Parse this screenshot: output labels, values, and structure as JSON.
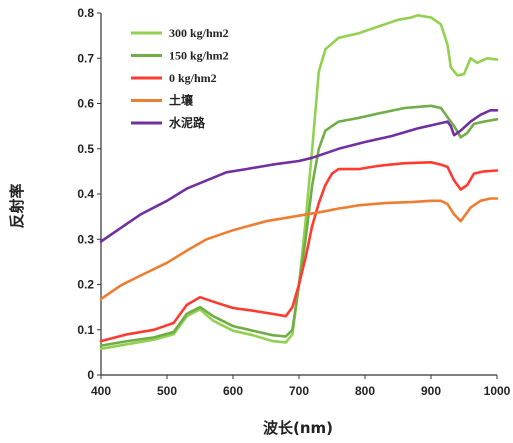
{
  "chart_data": {
    "type": "line",
    "xlabel": "波长(nm)",
    "ylabel": "反射率",
    "xlim": [
      400,
      1000
    ],
    "ylim": [
      0,
      0.8
    ],
    "x_ticks": [
      400,
      500,
      600,
      700,
      800,
      900,
      1000
    ],
    "y_ticks": [
      0,
      0.1,
      0.2,
      0.3,
      0.4,
      0.5,
      0.6,
      0.7,
      0.8
    ],
    "y_tick_labels": [
      "0",
      "0.1",
      "0.2",
      "0.3",
      "0.4",
      "0.5",
      "0.6",
      "0.7",
      "0.8"
    ],
    "legend_position": "top-left",
    "series": [
      {
        "name": "300 kg/hm2",
        "color": "#92d050",
        "points": [
          [
            400,
            0.058
          ],
          [
            440,
            0.068
          ],
          [
            480,
            0.078
          ],
          [
            510,
            0.09
          ],
          [
            530,
            0.13
          ],
          [
            550,
            0.145
          ],
          [
            570,
            0.12
          ],
          [
            600,
            0.098
          ],
          [
            630,
            0.088
          ],
          [
            660,
            0.075
          ],
          [
            680,
            0.072
          ],
          [
            690,
            0.09
          ],
          [
            700,
            0.2
          ],
          [
            710,
            0.34
          ],
          [
            720,
            0.5
          ],
          [
            730,
            0.67
          ],
          [
            740,
            0.72
          ],
          [
            760,
            0.745
          ],
          [
            790,
            0.755
          ],
          [
            810,
            0.765
          ],
          [
            830,
            0.775
          ],
          [
            850,
            0.785
          ],
          [
            870,
            0.79
          ],
          [
            880,
            0.795
          ],
          [
            900,
            0.79
          ],
          [
            915,
            0.775
          ],
          [
            925,
            0.73
          ],
          [
            930,
            0.68
          ],
          [
            940,
            0.662
          ],
          [
            950,
            0.665
          ],
          [
            960,
            0.7
          ],
          [
            970,
            0.69
          ],
          [
            985,
            0.7
          ],
          [
            1000,
            0.697
          ]
        ]
      },
      {
        "name": "150 kg/hm2",
        "color": "#70ad47",
        "points": [
          [
            400,
            0.065
          ],
          [
            440,
            0.075
          ],
          [
            480,
            0.083
          ],
          [
            510,
            0.095
          ],
          [
            530,
            0.135
          ],
          [
            550,
            0.15
          ],
          [
            570,
            0.13
          ],
          [
            600,
            0.108
          ],
          [
            630,
            0.098
          ],
          [
            660,
            0.088
          ],
          [
            680,
            0.085
          ],
          [
            690,
            0.1
          ],
          [
            700,
            0.2
          ],
          [
            710,
            0.3
          ],
          [
            720,
            0.42
          ],
          [
            730,
            0.5
          ],
          [
            740,
            0.54
          ],
          [
            750,
            0.55
          ],
          [
            760,
            0.56
          ],
          [
            790,
            0.568
          ],
          [
            820,
            0.578
          ],
          [
            860,
            0.59
          ],
          [
            900,
            0.595
          ],
          [
            915,
            0.59
          ],
          [
            925,
            0.57
          ],
          [
            935,
            0.55
          ],
          [
            945,
            0.525
          ],
          [
            955,
            0.535
          ],
          [
            965,
            0.555
          ],
          [
            980,
            0.56
          ],
          [
            1000,
            0.565
          ]
        ]
      },
      {
        "name": "0 kg/hm2",
        "color": "#ff3b30",
        "points": [
          [
            400,
            0.075
          ],
          [
            440,
            0.09
          ],
          [
            480,
            0.1
          ],
          [
            510,
            0.115
          ],
          [
            530,
            0.155
          ],
          [
            550,
            0.172
          ],
          [
            570,
            0.162
          ],
          [
            600,
            0.148
          ],
          [
            630,
            0.142
          ],
          [
            660,
            0.135
          ],
          [
            680,
            0.13
          ],
          [
            690,
            0.15
          ],
          [
            700,
            0.2
          ],
          [
            710,
            0.26
          ],
          [
            720,
            0.33
          ],
          [
            730,
            0.38
          ],
          [
            740,
            0.42
          ],
          [
            750,
            0.445
          ],
          [
            760,
            0.455
          ],
          [
            790,
            0.455
          ],
          [
            820,
            0.462
          ],
          [
            860,
            0.468
          ],
          [
            900,
            0.47
          ],
          [
            915,
            0.465
          ],
          [
            925,
            0.46
          ],
          [
            935,
            0.43
          ],
          [
            945,
            0.41
          ],
          [
            955,
            0.42
          ],
          [
            965,
            0.445
          ],
          [
            980,
            0.45
          ],
          [
            1000,
            0.452
          ]
        ]
      },
      {
        "name": "土壤",
        "color": "#ed7d31",
        "points": [
          [
            400,
            0.168
          ],
          [
            430,
            0.198
          ],
          [
            460,
            0.22
          ],
          [
            500,
            0.248
          ],
          [
            530,
            0.275
          ],
          [
            560,
            0.3
          ],
          [
            600,
            0.32
          ],
          [
            650,
            0.34
          ],
          [
            700,
            0.352
          ],
          [
            740,
            0.362
          ],
          [
            760,
            0.368
          ],
          [
            770,
            0.37
          ],
          [
            790,
            0.375
          ],
          [
            830,
            0.38
          ],
          [
            870,
            0.382
          ],
          [
            900,
            0.385
          ],
          [
            915,
            0.385
          ],
          [
            925,
            0.378
          ],
          [
            935,
            0.355
          ],
          [
            945,
            0.34
          ],
          [
            960,
            0.37
          ],
          [
            975,
            0.385
          ],
          [
            990,
            0.39
          ],
          [
            1000,
            0.39
          ]
        ]
      },
      {
        "name": "水泥路",
        "color": "#7030a0",
        "points": [
          [
            400,
            0.295
          ],
          [
            430,
            0.325
          ],
          [
            460,
            0.355
          ],
          [
            500,
            0.385
          ],
          [
            530,
            0.412
          ],
          [
            560,
            0.43
          ],
          [
            590,
            0.448
          ],
          [
            620,
            0.455
          ],
          [
            660,
            0.465
          ],
          [
            700,
            0.473
          ],
          [
            720,
            0.48
          ],
          [
            760,
            0.5
          ],
          [
            800,
            0.515
          ],
          [
            840,
            0.528
          ],
          [
            880,
            0.545
          ],
          [
            910,
            0.555
          ],
          [
            925,
            0.56
          ],
          [
            930,
            0.55
          ],
          [
            935,
            0.53
          ],
          [
            945,
            0.54
          ],
          [
            960,
            0.56
          ],
          [
            975,
            0.575
          ],
          [
            990,
            0.585
          ],
          [
            1000,
            0.585
          ]
        ]
      }
    ]
  }
}
